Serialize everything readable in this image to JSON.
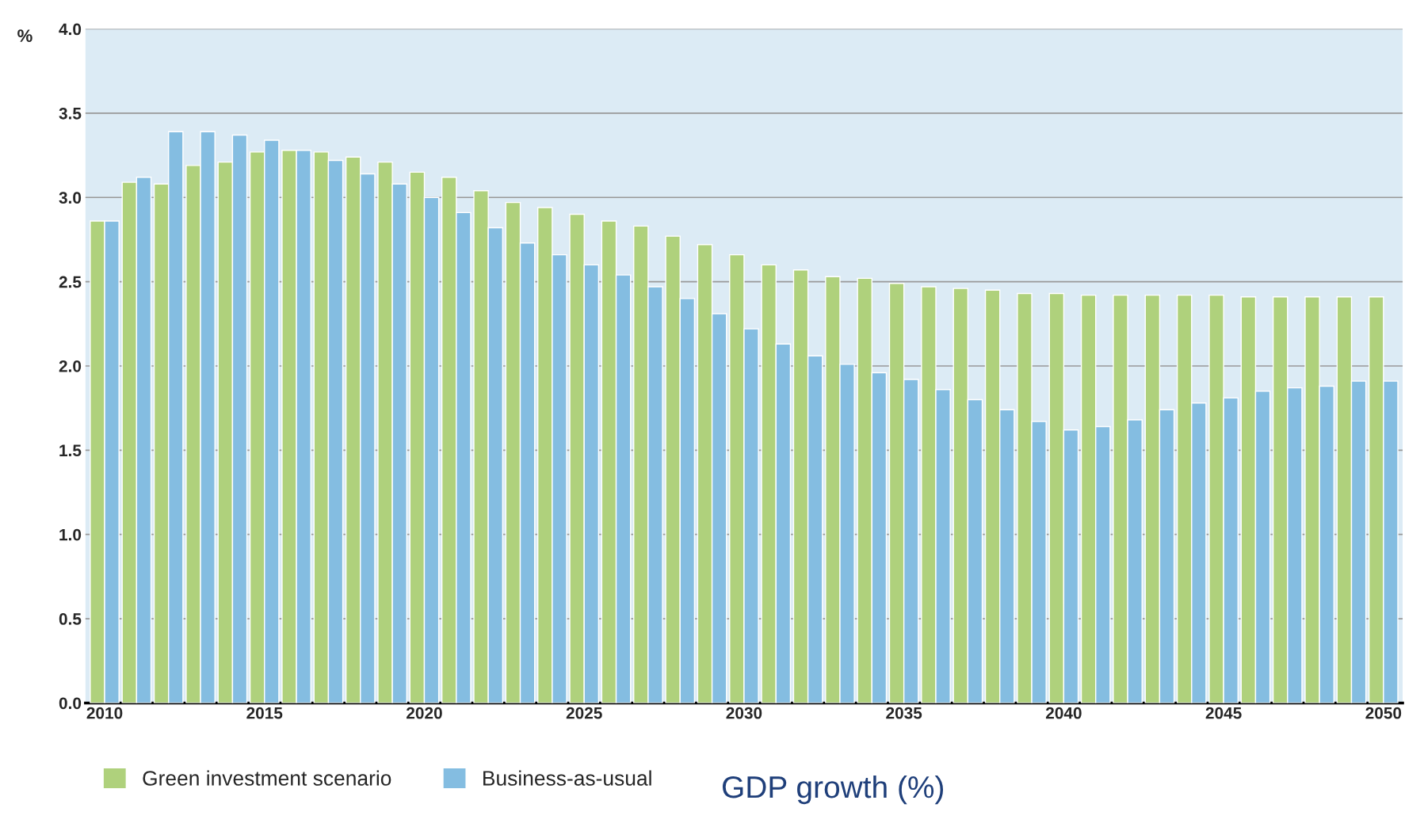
{
  "chart_data": {
    "type": "bar",
    "title": "GDP growth (%)",
    "ylabel": "%",
    "categories": [
      "2010",
      null,
      null,
      null,
      null,
      "2015",
      null,
      null,
      null,
      null,
      "2020",
      null,
      null,
      null,
      null,
      "2025",
      null,
      null,
      null,
      null,
      "2030",
      null,
      null,
      null,
      null,
      "2035",
      null,
      null,
      null,
      null,
      "2040",
      null,
      null,
      null,
      null,
      "2045",
      null,
      null,
      null,
      null,
      "2050"
    ],
    "series": [
      {
        "name": "Green investment scenario",
        "color": "#afd17c",
        "values": [
          2.86,
          3.09,
          3.08,
          3.19,
          3.21,
          3.27,
          3.28,
          3.27,
          3.24,
          3.21,
          3.15,
          3.12,
          3.04,
          2.97,
          2.94,
          2.9,
          2.86,
          2.83,
          2.77,
          2.72,
          2.66,
          2.6,
          2.57,
          2.53,
          2.52,
          2.49,
          2.47,
          2.46,
          2.45,
          2.43,
          2.43,
          2.42,
          2.42,
          2.42,
          2.42,
          2.42,
          2.41,
          2.41,
          2.41,
          2.41,
          2.41
        ]
      },
      {
        "name": "Business-as-usual",
        "color": "#84bde1",
        "values": [
          2.86,
          3.12,
          3.39,
          3.39,
          3.37,
          3.34,
          3.28,
          3.22,
          3.14,
          3.08,
          3.0,
          2.91,
          2.82,
          2.73,
          2.66,
          2.6,
          2.54,
          2.47,
          2.4,
          2.31,
          2.22,
          2.13,
          2.06,
          2.01,
          1.96,
          1.92,
          1.86,
          1.8,
          1.74,
          1.67,
          1.62,
          1.64,
          1.68,
          1.74,
          1.78,
          1.81,
          1.85,
          1.87,
          1.88,
          1.91,
          1.91
        ]
      }
    ],
    "ylim": [
      0,
      4.0
    ],
    "yticks": [
      {
        "value": 0,
        "label": "0.0"
      },
      0.5,
      {
        "value": 1,
        "label": "1.0"
      },
      1.5,
      {
        "value": 2,
        "label": "2.0"
      },
      2.5,
      {
        "value": 3,
        "label": "3.0"
      },
      3.5,
      {
        "value": 4,
        "label": "4.0"
      }
    ],
    "grid": "y",
    "legend": "bottom left"
  }
}
